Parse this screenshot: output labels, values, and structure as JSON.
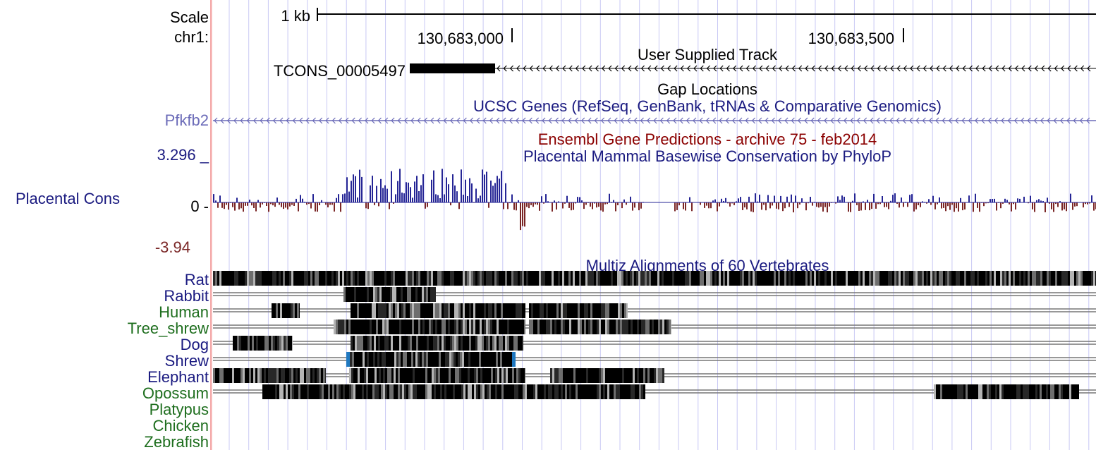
{
  "scale": {
    "label": "Scale",
    "size_label": "1 kb"
  },
  "position": {
    "chrom_label": "chr1:",
    "ticks": [
      {
        "label": "130,683,000"
      },
      {
        "label": "130,683,500"
      }
    ]
  },
  "tracks": {
    "user_track": {
      "title": "User Supplied Track",
      "item_label": "TCONS_00005497",
      "strand": "-"
    },
    "gap": {
      "title": "Gap Locations"
    },
    "ucsc_genes": {
      "title": "UCSC Genes (RefSeq, GenBank, tRNAs & Comparative Genomics)",
      "gene_label": "Pfkfb2",
      "strand": "-"
    },
    "ensembl": {
      "title": "Ensembl Gene Predictions - archive 75 - feb2014"
    },
    "phylop": {
      "title": "Placental Mammal Basewise Conservation by PhyloP",
      "side_label": "Placental Cons",
      "y_max_label": "3.296 _",
      "y_zero_label": "0 -",
      "y_min_label": "-3.94",
      "y_max": 3.296,
      "y_min": -3.94
    },
    "multiz": {
      "title": "Multiz Alignments of 60 Vertebrates",
      "species": [
        {
          "name": "Rat",
          "group": "mammal"
        },
        {
          "name": "Rabbit",
          "group": "mammal"
        },
        {
          "name": "Human",
          "group": "primate"
        },
        {
          "name": "Tree_shrew",
          "group": "primate"
        },
        {
          "name": "Dog",
          "group": "mammal"
        },
        {
          "name": "Shrew",
          "group": "mammal"
        },
        {
          "name": "Elephant",
          "group": "mammal"
        },
        {
          "name": "Opossum",
          "group": "vertebrate"
        },
        {
          "name": "Platypus",
          "group": "vertebrate"
        },
        {
          "name": "Chicken",
          "group": "vertebrate"
        },
        {
          "name": "Zebrafish",
          "group": "vertebrate"
        }
      ]
    }
  },
  "colors": {
    "text": "#000000",
    "navy": "#1a1a80",
    "green": "#1e6e1e",
    "ensembl_red": "#8b0000",
    "gene_blue": "#6b6bb8",
    "gridline": "#c8c8f4",
    "left_border": "#f4a8a8",
    "cons_positive": "#252595",
    "cons_negative": "#7a2626",
    "shrew_edge": "#1f78c0"
  }
}
